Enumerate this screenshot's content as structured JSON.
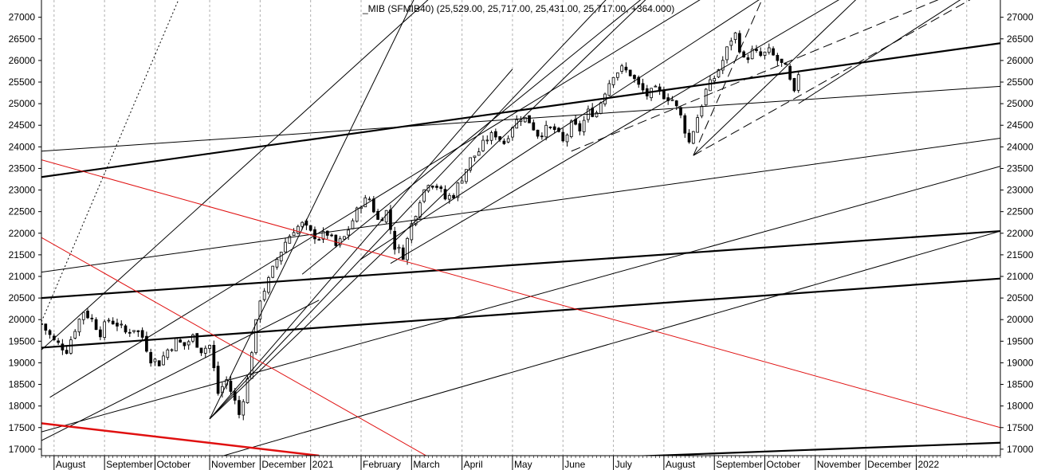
{
  "chart_data": {
    "type": "candlestick",
    "title": "_MIB (SFMIB40) (25,529.00, 25,717.00, 25,431.00, 25,717.00, +364.000)",
    "x_labels": [
      "August",
      "September",
      "October",
      "November",
      "December",
      "2021",
      "February",
      "March",
      "April",
      "May",
      "June",
      "July",
      "August",
      "September",
      "October",
      "November",
      "December",
      "2022"
    ],
    "y_ticks": [
      17000,
      17500,
      18000,
      18500,
      19000,
      19500,
      20000,
      20500,
      21000,
      21500,
      22000,
      22500,
      23000,
      23500,
      24000,
      24500,
      25000,
      25500,
      26000,
      26500,
      27000
    ],
    "ylim": [
      16850,
      27400
    ],
    "grid": "vertical dotted at month boundaries",
    "price_path": [
      [
        0,
        19900
      ],
      [
        3,
        19500
      ],
      [
        6,
        19300
      ],
      [
        8,
        19800
      ],
      [
        10,
        20200
      ],
      [
        12,
        20000
      ],
      [
        14,
        19700
      ],
      [
        16,
        20000
      ],
      [
        18,
        19900
      ],
      [
        20,
        19700
      ],
      [
        22,
        19800
      ],
      [
        24,
        19600
      ],
      [
        26,
        19100
      ],
      [
        28,
        19000
      ],
      [
        30,
        19300
      ],
      [
        32,
        19500
      ],
      [
        34,
        19400
      ],
      [
        36,
        19600
      ],
      [
        38,
        19300
      ],
      [
        40,
        19400
      ],
      [
        42,
        18300
      ],
      [
        44,
        18600
      ],
      [
        46,
        18100
      ],
      [
        47,
        17800
      ],
      [
        48,
        18200
      ],
      [
        49,
        18600
      ],
      [
        50,
        19300
      ],
      [
        52,
        20500
      ],
      [
        54,
        20900
      ],
      [
        56,
        21400
      ],
      [
        58,
        21800
      ],
      [
        60,
        22100
      ],
      [
        62,
        22200
      ],
      [
        64,
        22000
      ],
      [
        66,
        21900
      ],
      [
        68,
        22000
      ],
      [
        70,
        21700
      ],
      [
        72,
        21900
      ],
      [
        74,
        22300
      ],
      [
        76,
        22700
      ],
      [
        78,
        22800
      ],
      [
        80,
        22300
      ],
      [
        82,
        22500
      ],
      [
        84,
        21700
      ],
      [
        86,
        21500
      ],
      [
        88,
        22200
      ],
      [
        90,
        22800
      ],
      [
        92,
        23200
      ],
      [
        94,
        23100
      ],
      [
        96,
        22800
      ],
      [
        98,
        22900
      ],
      [
        100,
        23300
      ],
      [
        102,
        23700
      ],
      [
        104,
        23900
      ],
      [
        106,
        24200
      ],
      [
        108,
        24300
      ],
      [
        110,
        24100
      ],
      [
        112,
        24500
      ],
      [
        114,
        24700
      ],
      [
        116,
        24600
      ],
      [
        118,
        24300
      ],
      [
        120,
        24400
      ],
      [
        122,
        24400
      ],
      [
        124,
        24100
      ],
      [
        126,
        24500
      ],
      [
        128,
        24400
      ],
      [
        130,
        24800
      ],
      [
        132,
        24800
      ],
      [
        134,
        25300
      ],
      [
        136,
        25700
      ],
      [
        138,
        25800
      ],
      [
        140,
        25700
      ],
      [
        142,
        25400
      ],
      [
        144,
        25200
      ],
      [
        146,
        25300
      ],
      [
        148,
        25200
      ],
      [
        150,
        25100
      ],
      [
        152,
        24700
      ],
      [
        154,
        24100
      ],
      [
        156,
        24700
      ],
      [
        158,
        25300
      ],
      [
        160,
        25600
      ],
      [
        162,
        26000
      ],
      [
        164,
        26500
      ],
      [
        165,
        26600
      ],
      [
        167,
        26000
      ],
      [
        169,
        26200
      ],
      [
        171,
        26100
      ],
      [
        173,
        26200
      ],
      [
        175,
        26000
      ],
      [
        177,
        25800
      ],
      [
        179,
        25200
      ],
      [
        180,
        25717
      ]
    ],
    "trendlines": [
      {
        "from": [
          0,
          19950
        ],
        "to": [
          33,
          27500
        ],
        "color": "black",
        "width": 1,
        "dash": "2 3"
      },
      {
        "from": [
          2,
          18200
        ],
        "to": [
          180,
          28800
        ],
        "color": "black",
        "width": 1
      },
      {
        "from": [
          0,
          23900
        ],
        "to": [
          228,
          25400
        ],
        "color": "black",
        "width": 1
      },
      {
        "from": [
          0,
          23300
        ],
        "to": [
          228,
          26400
        ],
        "color": "black",
        "width": 2.2
      },
      {
        "from": [
          0,
          21100
        ],
        "to": [
          228,
          24200
        ],
        "color": "black",
        "width": 1
      },
      {
        "from": [
          0,
          20500
        ],
        "to": [
          228,
          22050
        ],
        "color": "black",
        "width": 2.2
      },
      {
        "from": [
          0,
          19350
        ],
        "to": [
          228,
          20950
        ],
        "color": "black",
        "width": 2.2
      },
      {
        "from": [
          0,
          17400
        ],
        "to": [
          228,
          23550
        ],
        "color": "black",
        "width": 1
      },
      {
        "from": [
          0,
          17200
        ],
        "to": [
          66,
          20450
        ],
        "color": "black",
        "width": 1
      },
      {
        "from": [
          38,
          16700
        ],
        "to": [
          228,
          22050
        ],
        "color": "black",
        "width": 1
      },
      {
        "from": [
          105,
          16700
        ],
        "to": [
          228,
          17150
        ],
        "color": "black",
        "width": 2.2
      },
      {
        "from": [
          0,
          19300
        ],
        "to": [
          93,
          27500
        ],
        "color": "black",
        "width": 1
      },
      {
        "from": [
          40,
          17700
        ],
        "to": [
          89,
          27500
        ],
        "color": "black",
        "width": 1
      },
      {
        "from": [
          40,
          17700
        ],
        "to": [
          150,
          28000
        ],
        "color": "black",
        "width": 1
      },
      {
        "from": [
          40,
          17700
        ],
        "to": [
          140,
          28000
        ],
        "color": "black",
        "width": 1
      },
      {
        "from": [
          40,
          17700
        ],
        "to": [
          112,
          25800
        ],
        "color": "black",
        "width": 1
      },
      {
        "from": [
          62,
          21050
        ],
        "to": [
          150,
          28000
        ],
        "color": "black",
        "width": 1
      },
      {
        "from": [
          83,
          21300
        ],
        "to": [
          200,
          28000
        ],
        "color": "black",
        "width": 1
      },
      {
        "from": [
          76,
          21400
        ],
        "to": [
          180,
          28000
        ],
        "color": "black",
        "width": 1
      },
      {
        "from": [
          126,
          23900
        ],
        "to": [
          228,
          28000
        ],
        "color": "black",
        "width": 1,
        "dash": "12 6"
      },
      {
        "from": [
          155,
          23800
        ],
        "to": [
          174,
          28000
        ],
        "color": "black",
        "width": 1,
        "dash": "12 6"
      },
      {
        "from": [
          155,
          23800
        ],
        "to": [
          228,
          27800
        ],
        "color": "black",
        "width": 1,
        "dash": "12 6"
      },
      {
        "from": [
          155,
          23800
        ],
        "to": [
          200,
          28000
        ],
        "color": "black",
        "width": 1
      },
      {
        "from": [
          180,
          25000
        ],
        "to": [
          228,
          28000
        ],
        "color": "black",
        "width": 1
      },
      {
        "from": [
          0,
          23700
        ],
        "to": [
          228,
          17500
        ],
        "color": "red",
        "width": 1
      },
      {
        "from": [
          0,
          21900
        ],
        "to": [
          96,
          16600
        ],
        "color": "red",
        "width": 1
      },
      {
        "from": [
          0,
          17600
        ],
        "to": [
          66,
          16850
        ],
        "color": "red",
        "width": 2.5
      }
    ]
  }
}
